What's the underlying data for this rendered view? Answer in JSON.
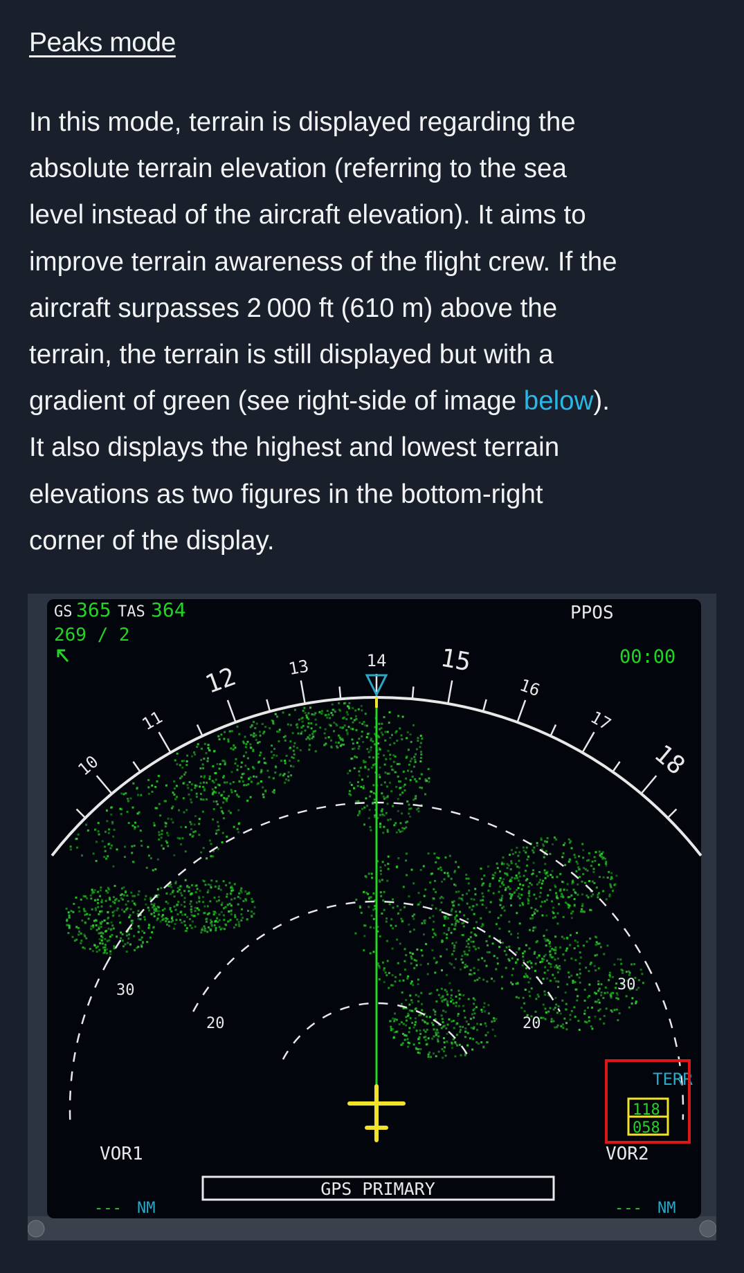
{
  "heading": "Peaks mode",
  "paragraph": {
    "lines": [
      "In this mode, terrain is displayed regarding the",
      "absolute terrain elevation (referring to the sea",
      "level instead of the aircraft elevation). It aims to",
      "improve terrain awareness of the flight crew. If the",
      "aircraft surpasses 2 000 ft (610 m) above the",
      "terrain, the terrain is still displayed but with a",
      "gradient of green (see right-side of image ",
      "It also displays the highest and lowest terrain",
      "elevations as two figures in the bottom-right",
      "corner of the display."
    ],
    "link_text": "below",
    "link_suffix": ")."
  },
  "nd": {
    "gs_label": "GS",
    "gs_value": "365",
    "tas_label": "TAS",
    "tas_value": "364",
    "wind": "269 / 2",
    "mode": "PPOS",
    "clock": "00:00",
    "heading_scale": [
      "10",
      "11",
      "12",
      "13",
      "14",
      "15",
      "16",
      "17",
      "18"
    ],
    "current_heading": 14,
    "range_rings": [
      "20",
      "30"
    ],
    "terr_label": "TERR",
    "terr_high": "118",
    "terr_low": "058",
    "vor1": "VOR1",
    "vor2": "VOR2",
    "nav_message": "GPS PRIMARY",
    "dist_left": "---",
    "dist_right": "---",
    "dist_unit": "NM",
    "colors": {
      "green": "#22d522",
      "cyan": "#2aa8c8",
      "yellow": "#f2e22a",
      "white": "#e8e8e8",
      "highlight": "#e01515",
      "screen": "#02050c"
    }
  }
}
